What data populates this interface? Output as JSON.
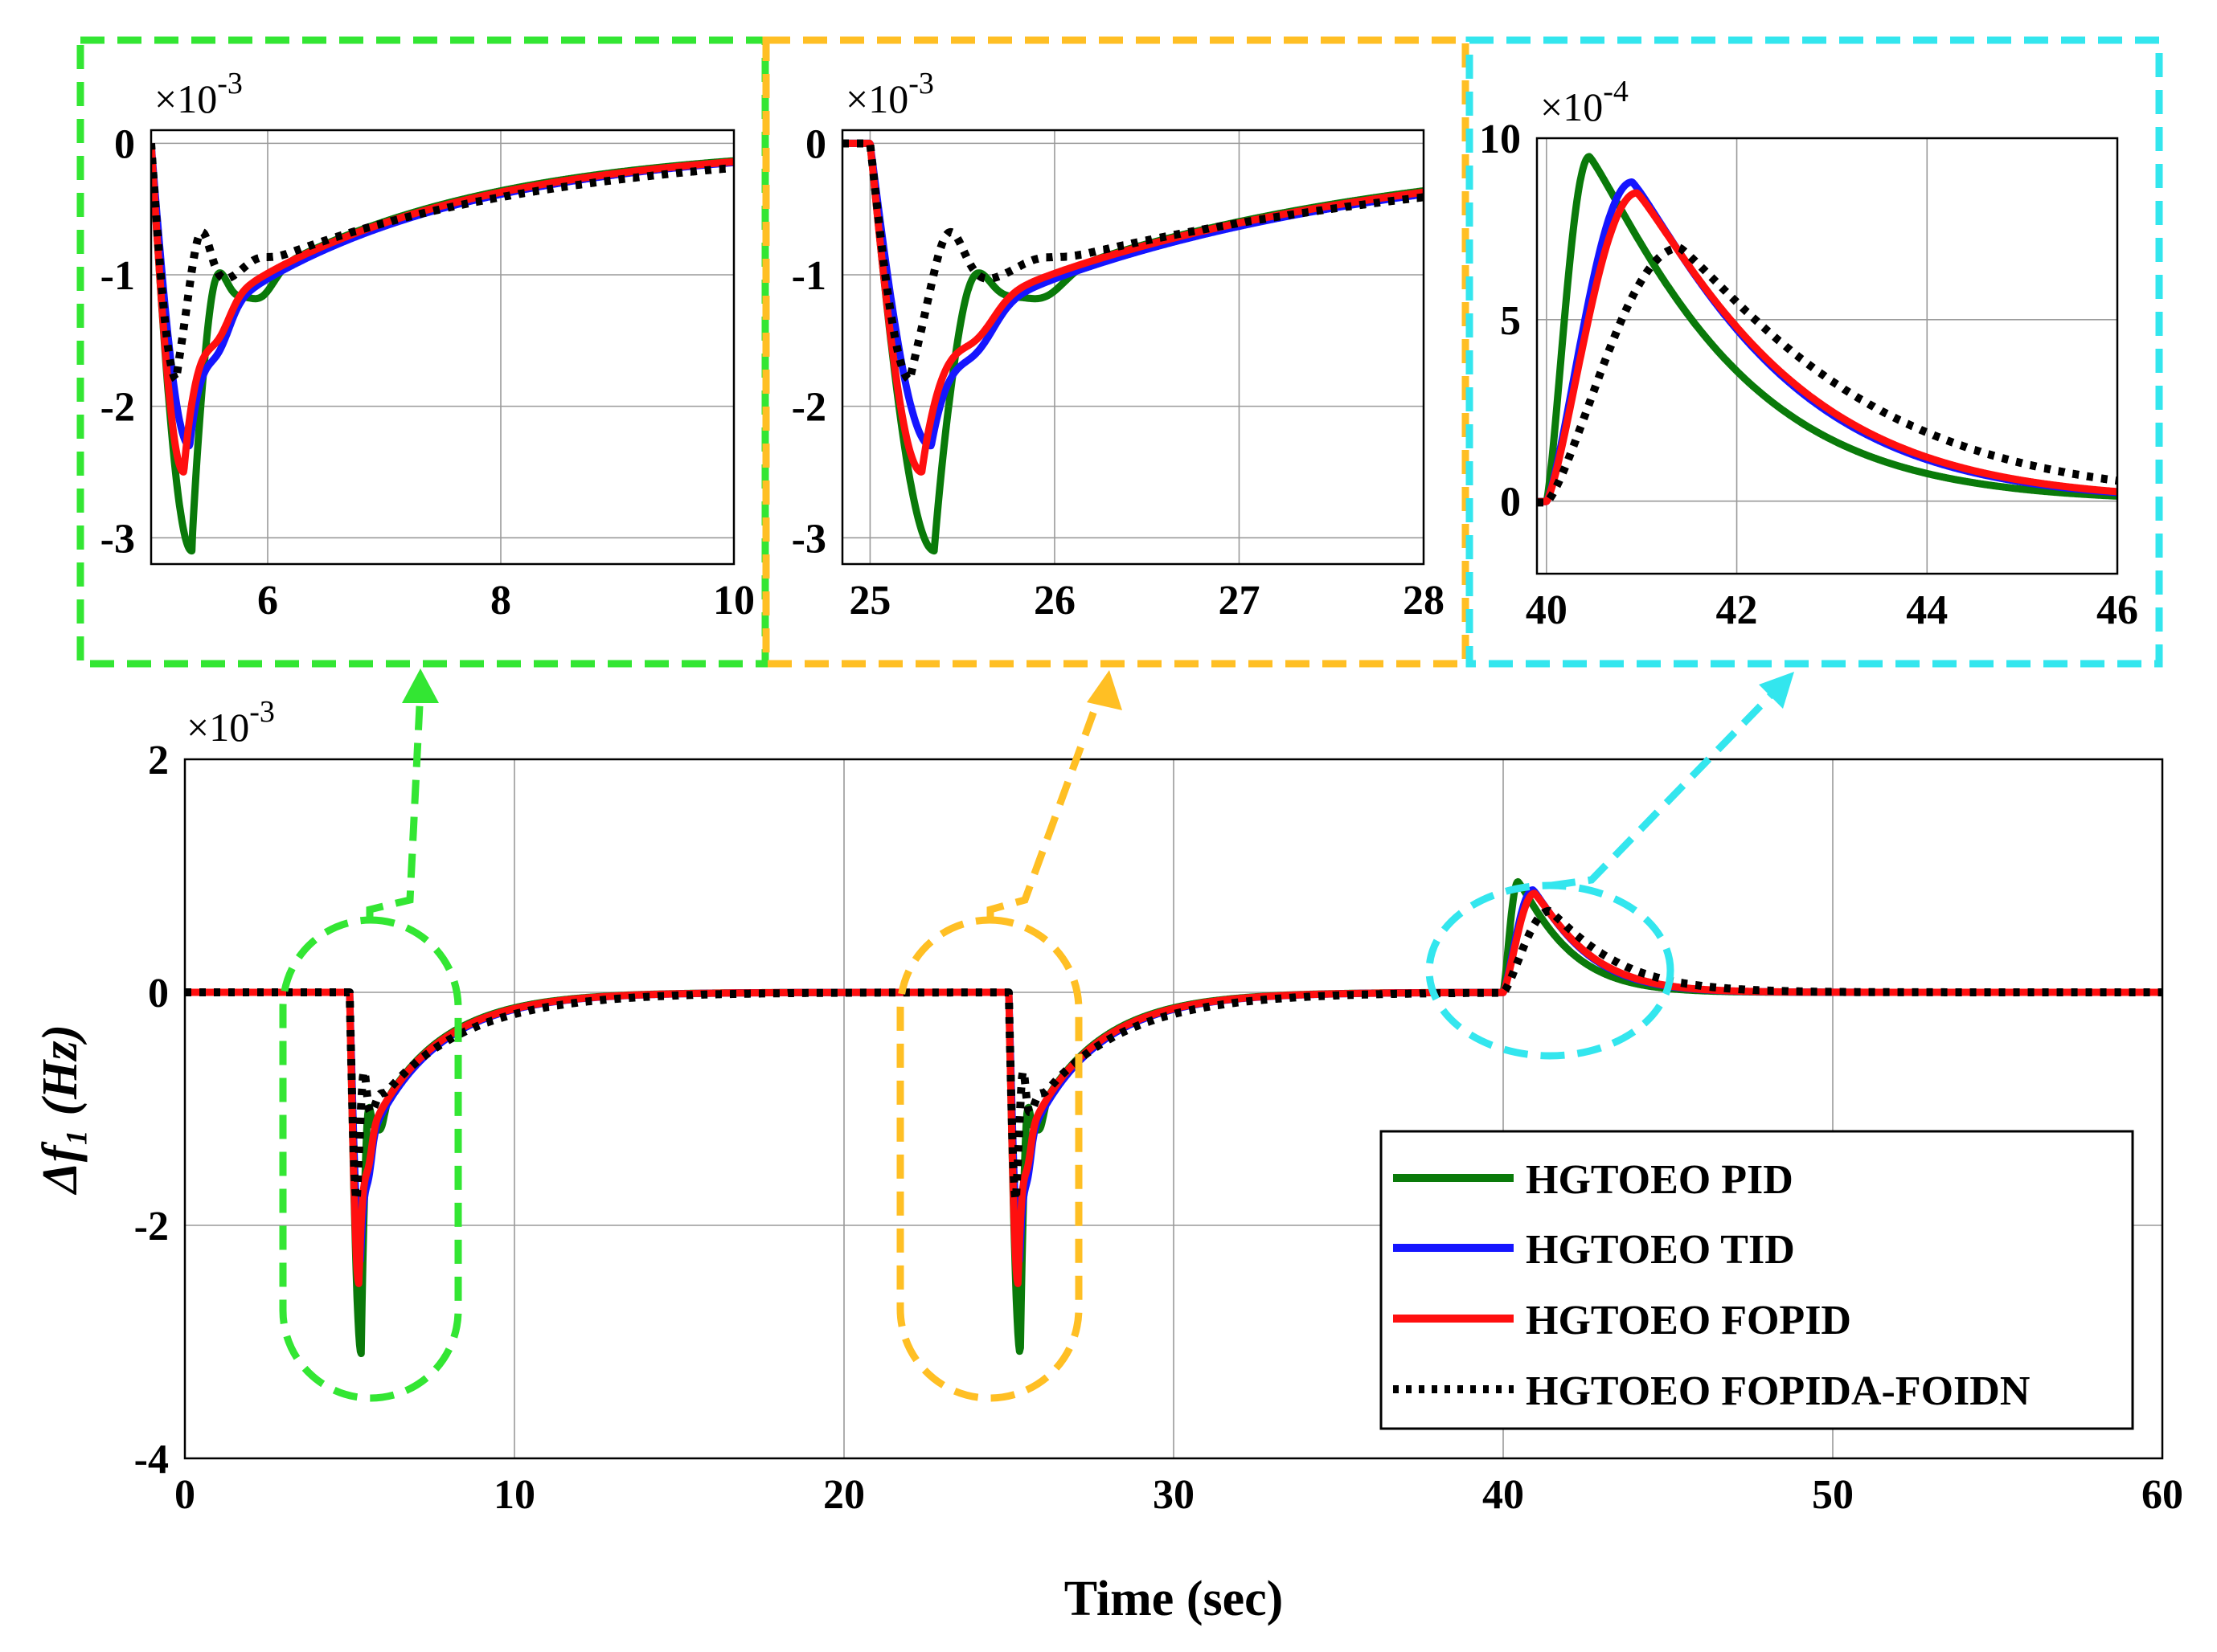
{
  "colors": {
    "green": "#0a7a0a",
    "blue": "#1515ff",
    "red": "#ff0f0f",
    "black": "#000000",
    "zoom_green": "#33e633",
    "zoom_orange": "#ffbf24",
    "zoom_cyan": "#33e6ee"
  },
  "chart_data": [
    {
      "id": "main",
      "type": "line",
      "xlabel": "Time (sec)",
      "ylabel": "Δf₁ (Hz)",
      "y_multiplier": "×10",
      "y_exponent": "-3",
      "xlim": [
        0,
        60
      ],
      "ylim": [
        -4,
        2
      ],
      "xticks": [
        "0",
        "10",
        "20",
        "30",
        "40",
        "50",
        "60"
      ],
      "yticks": [
        "-4",
        "-2",
        "0",
        "2"
      ],
      "grid": true,
      "legend_position": "bottom-right",
      "series": [
        {
          "name": "HGTOEO PID",
          "color": "green",
          "style": "solid"
        },
        {
          "name": "HGTOEO TID",
          "color": "blue",
          "style": "solid"
        },
        {
          "name": "HGTOEO FOPID",
          "color": "red",
          "style": "solid"
        },
        {
          "name": "HGTOEO FOPIDA-FOIDN",
          "color": "black",
          "style": "dotted"
        }
      ],
      "events": [
        {
          "t": 5,
          "direction": "down",
          "peak": [
            -3.1,
            -2.3,
            -2.5,
            -1.8
          ]
        },
        {
          "t": 25,
          "direction": "down",
          "peak": [
            -3.1,
            -2.3,
            -2.5,
            -1.8
          ]
        },
        {
          "t": 40,
          "direction": "up",
          "peak": [
            0.95,
            0.88,
            0.85,
            0.7
          ]
        }
      ]
    },
    {
      "id": "zoom1",
      "type": "line",
      "zoom_of": "main",
      "y_multiplier": "×10",
      "y_exponent": "-3",
      "xlim": [
        5,
        10
      ],
      "ylim": [
        -3.2,
        0.1
      ],
      "xticks": [
        "6",
        "8",
        "10"
      ],
      "yticks": [
        "0",
        "-1",
        "-2",
        "-3"
      ],
      "grid": true
    },
    {
      "id": "zoom2",
      "type": "line",
      "zoom_of": "main",
      "y_multiplier": "×10",
      "y_exponent": "-3",
      "xlim": [
        24.85,
        28
      ],
      "ylim": [
        -3.2,
        0.1
      ],
      "xticks": [
        "25",
        "26",
        "27",
        "28"
      ],
      "yticks": [
        "0",
        "-1",
        "-2",
        "-3"
      ],
      "grid": true
    },
    {
      "id": "zoom3",
      "type": "line",
      "zoom_of": "main",
      "y_multiplier": "×10",
      "y_exponent": "-4",
      "xlim": [
        39.9,
        46
      ],
      "ylim": [
        -2,
        10
      ],
      "xticks": [
        "40",
        "42",
        "44",
        "46"
      ],
      "yticks": [
        "10",
        "5",
        "0"
      ],
      "grid": true
    }
  ]
}
